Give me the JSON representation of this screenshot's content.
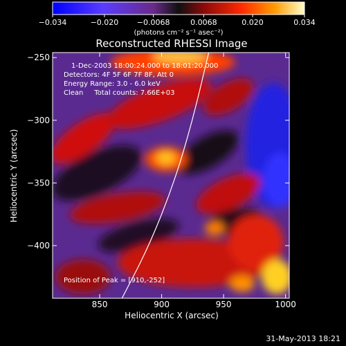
{
  "chart_data": {
    "type": "heatmap",
    "title": "Reconstructed RHESSI Image",
    "xlabel": "Heliocentric X (arcsec)",
    "ylabel": "Heliocentric Y (arcsec)",
    "xlim": [
      812,
      1003
    ],
    "ylim": [
      -442,
      -246
    ],
    "x_ticks": [
      850,
      900,
      950,
      1000
    ],
    "y_ticks": [
      -250,
      -300,
      -350,
      -400
    ],
    "colorbar": {
      "min": -0.034,
      "max": 0.034,
      "ticks": [
        "-0.034",
        "-0.020",
        "-0.0068",
        "0.0068",
        "0.020",
        "0.034"
      ],
      "tick_values": [
        -0.034,
        -0.02,
        -0.0068,
        0.0068,
        0.02,
        0.034
      ],
      "units": "(photons cm⁻² s⁻¹ asec⁻²)"
    },
    "annotations": [
      "1-Dec-2003 18:00:24.000 to 18:01:20.000",
      "Detectors: 4F 5F 6F 7F 8F, Att 0",
      "Energy Range: 3.0 - 6.0 keV",
      "Clean     Total counts: 7.66E+03"
    ],
    "peak_label": "Position of Peak = [910,-252]",
    "peak": [
      910,
      -252
    ],
    "limb_curve": [
      [
        868,
        -442
      ],
      [
        890,
        -400
      ],
      [
        910,
        -350
      ],
      [
        925,
        -300
      ],
      [
        938,
        -246
      ]
    ]
  },
  "footer": "31-May-2013 18:21"
}
